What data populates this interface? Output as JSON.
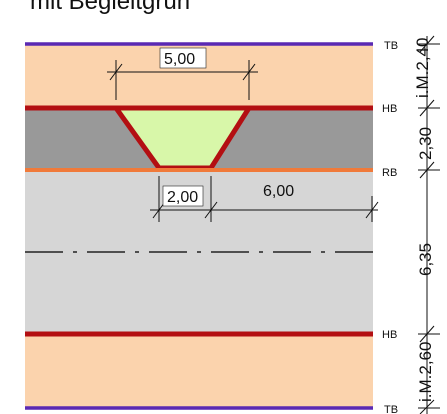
{
  "caption": "mit Begleitgrün",
  "colors": {
    "footway": "#fbd3ad",
    "separator": "#999999",
    "median": "#d8f7a9",
    "median_border": "#b30f12",
    "carriageway": "#d6d6d6",
    "tb_line": "#5a29b3",
    "hb_line": "#b30f12",
    "rb_line": "#f07a3a",
    "centerline": "#222222",
    "dimension_line": "#111111"
  },
  "dimensions": {
    "median_top": "5,00",
    "median_bottom": "2,00",
    "lane_right": "6,00"
  },
  "edge_labels": {
    "tb_top": "TB",
    "hb_top": "HB",
    "rb": "RB",
    "hb_bottom": "HB",
    "tb_bottom": "TB"
  },
  "right_dimensions": {
    "top": "i.M.2,40",
    "upper": "2,30",
    "middle": "6,35",
    "bottom": "i.M.2,60"
  }
}
